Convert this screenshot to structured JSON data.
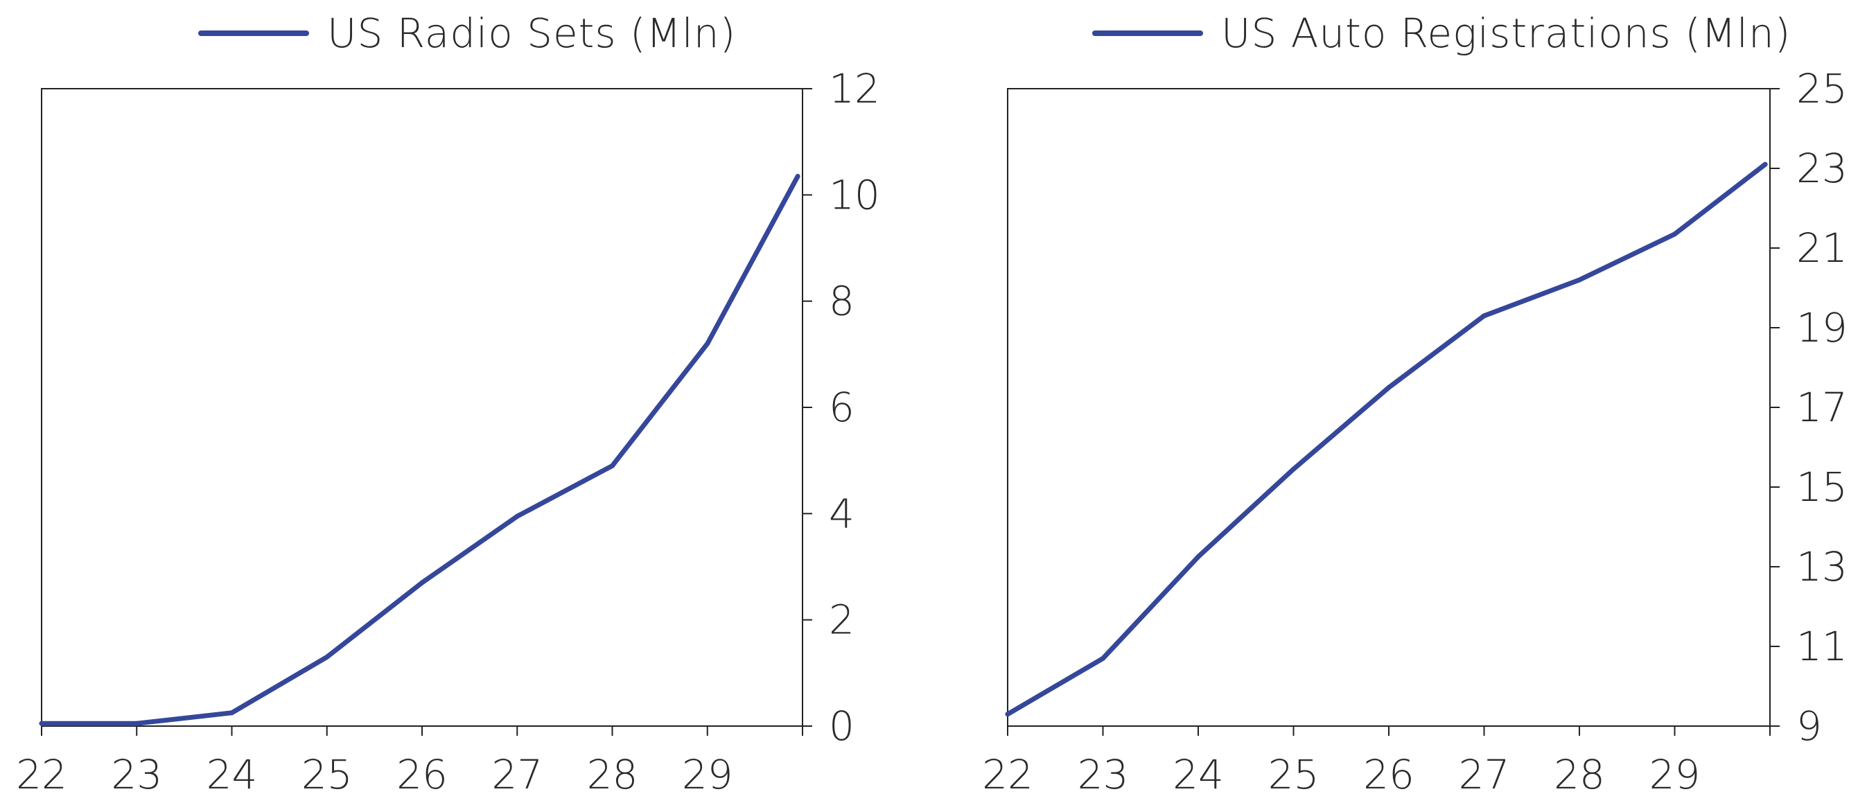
{
  "colors": {
    "series": "#35479a",
    "axis": "#222222"
  },
  "chart_data": [
    {
      "type": "line",
      "legend_position": "top-center",
      "grid": false,
      "y_axis_side": "right",
      "legend": "US Radio Sets (Mln)",
      "x_tick_labels": [
        "22",
        "23",
        "24",
        "25",
        "26",
        "27",
        "28",
        "29"
      ],
      "xlim": [
        22,
        30
      ],
      "ylim": [
        0,
        12
      ],
      "y_ticks": [
        0,
        2,
        4,
        6,
        8,
        10,
        12
      ],
      "series": [
        {
          "name": "US Radio Sets (Mln)",
          "x": [
            22,
            23,
            24,
            25,
            26,
            27,
            28,
            29,
            29.95
          ],
          "y": [
            0.05,
            0.05,
            0.25,
            1.3,
            2.7,
            3.95,
            4.9,
            7.2,
            10.35
          ]
        }
      ]
    },
    {
      "type": "line",
      "legend_position": "top-center",
      "grid": false,
      "y_axis_side": "right",
      "legend": "US Auto Registrations (Mln)",
      "x_tick_labels": [
        "22",
        "23",
        "24",
        "25",
        "26",
        "27",
        "28",
        "29"
      ],
      "xlim": [
        22,
        30
      ],
      "ylim": [
        9,
        25
      ],
      "y_ticks": [
        9,
        11,
        13,
        15,
        17,
        19,
        21,
        23,
        25
      ],
      "series": [
        {
          "name": "US Auto Registrations (Mln)",
          "x": [
            22,
            23,
            24,
            25,
            26,
            27,
            28,
            29,
            29.95
          ],
          "y": [
            9.3,
            10.7,
            13.25,
            15.45,
            17.5,
            19.3,
            20.2,
            21.35,
            23.1
          ]
        }
      ]
    }
  ]
}
